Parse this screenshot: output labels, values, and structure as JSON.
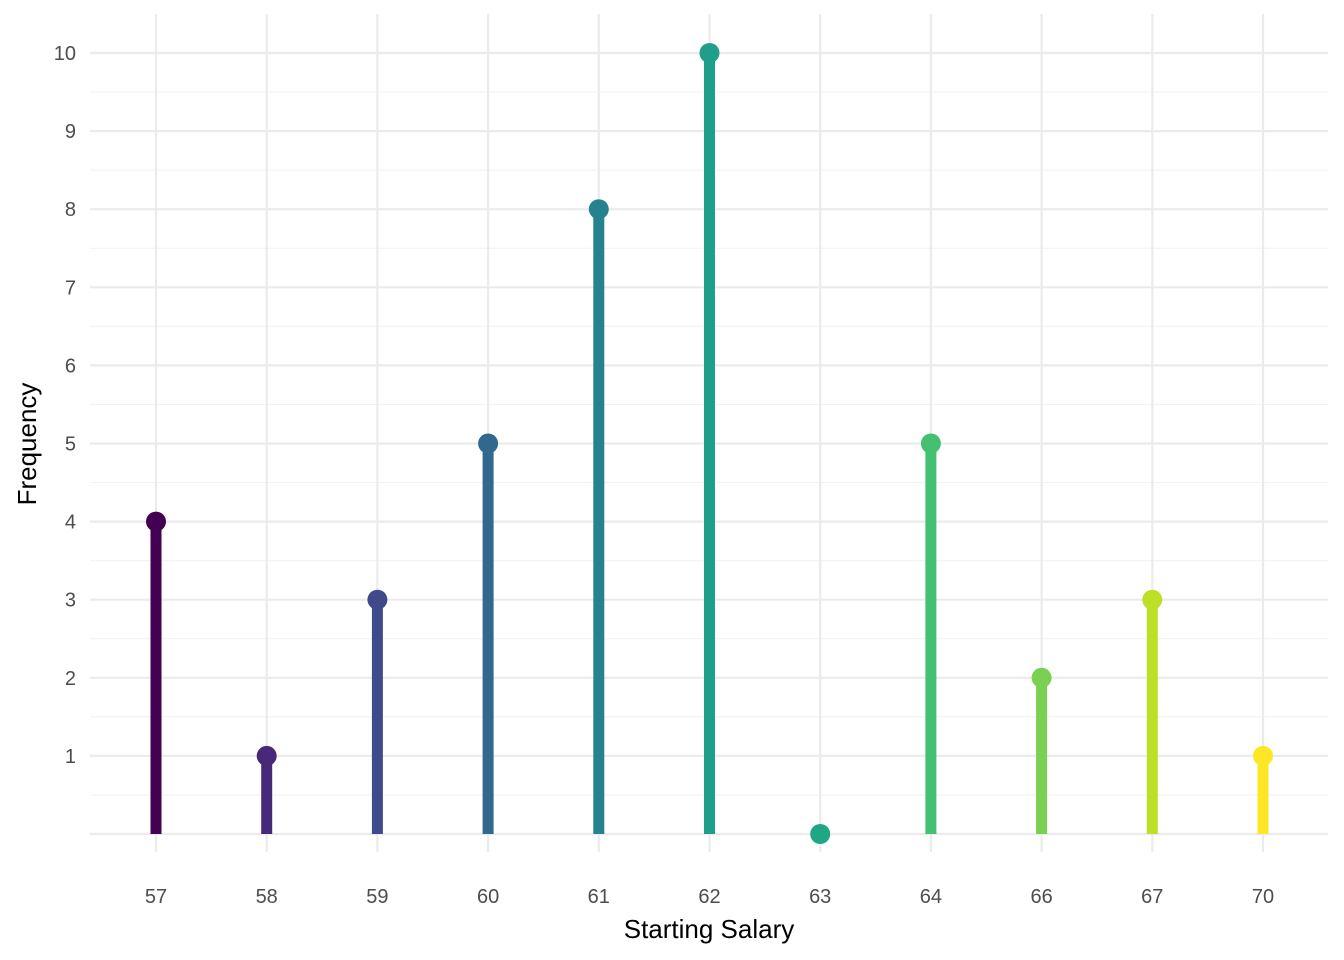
{
  "chart_data": {
    "type": "lollipop",
    "xlabel": "Starting Salary",
    "ylabel": "Frequency",
    "categories": [
      "57",
      "58",
      "59",
      "60",
      "61",
      "62",
      "63",
      "64",
      "66",
      "67",
      "70"
    ],
    "values": [
      4,
      1,
      3,
      5,
      8,
      10,
      0,
      5,
      2,
      3,
      1
    ],
    "colors": [
      "#440154",
      "#482878",
      "#3E4A89",
      "#31688E",
      "#26828E",
      "#1F9E89",
      "#21A685",
      "#45BF70",
      "#7AD151",
      "#BDDF26",
      "#FDE725"
    ],
    "ylim": [
      0,
      10
    ],
    "y_ticks": [
      1,
      2,
      3,
      4,
      5,
      6,
      7,
      8,
      9,
      10
    ],
    "y_tick_labels": [
      "1",
      "2",
      "3",
      "4",
      "5",
      "6",
      "7",
      "8",
      "9",
      "10"
    ],
    "grid": true,
    "legend": "none"
  }
}
